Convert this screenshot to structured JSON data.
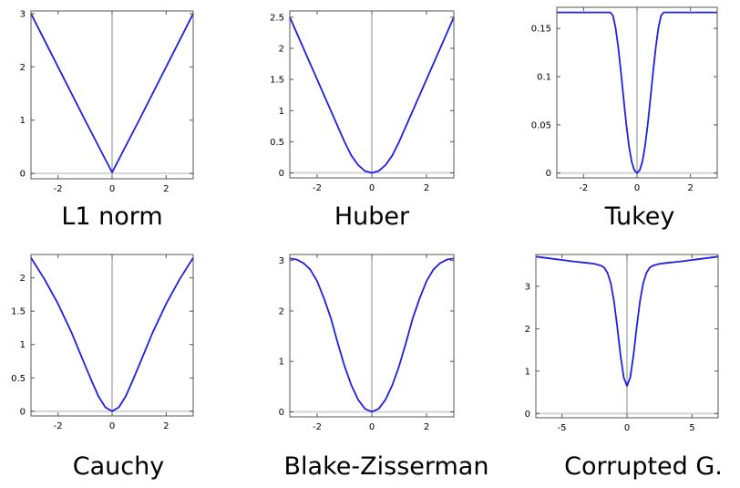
{
  "chart_data": [
    {
      "type": "line",
      "title": "L1 norm",
      "xlim": [
        -3,
        3
      ],
      "ylim": [
        -0.1,
        3.05
      ],
      "xticks": [
        -2,
        0,
        2
      ],
      "xtick_labels": [
        "-2",
        "0",
        "2"
      ],
      "yticks": [
        0,
        1,
        2,
        3
      ],
      "ytick_labels": [
        "0",
        "1",
        "2",
        "3"
      ],
      "baseline_y": 0.0,
      "grid": false,
      "series": [
        {
          "points": [
            [
              -3,
              3
            ],
            [
              -2,
              2
            ],
            [
              -1,
              1
            ],
            [
              0,
              0.02
            ],
            [
              1,
              1
            ],
            [
              2,
              2
            ],
            [
              3,
              3
            ]
          ]
        }
      ]
    },
    {
      "type": "line",
      "title": "Huber",
      "xlim": [
        -3,
        3
      ],
      "ylim": [
        -0.08,
        2.6
      ],
      "xticks": [
        -2,
        0,
        2
      ],
      "xtick_labels": [
        "-2",
        "0",
        "2"
      ],
      "yticks": [
        0,
        0.5,
        1,
        1.5,
        2,
        2.5
      ],
      "ytick_labels": [
        "0",
        "0.5",
        "1",
        "1.5",
        "2",
        "2.5"
      ],
      "baseline_y": 0.0,
      "grid": false,
      "series": [
        {
          "points": [
            [
              -3,
              2.5
            ],
            [
              -2.5,
              2.0
            ],
            [
              -2,
              1.5
            ],
            [
              -1.5,
              1.0
            ],
            [
              -1,
              0.5
            ],
            [
              -0.75,
              0.28
            ],
            [
              -0.5,
              0.125
            ],
            [
              -0.25,
              0.03
            ],
            [
              0,
              0.0
            ],
            [
              0.25,
              0.03
            ],
            [
              0.5,
              0.125
            ],
            [
              0.75,
              0.28
            ],
            [
              1,
              0.5
            ],
            [
              1.5,
              1.0
            ],
            [
              2,
              1.5
            ],
            [
              2.5,
              2.0
            ],
            [
              3,
              2.5
            ]
          ]
        }
      ]
    },
    {
      "type": "line",
      "title": "Tukey",
      "xlim": [
        -3,
        3
      ],
      "ylim": [
        -0.005,
        0.172
      ],
      "xticks": [
        -2,
        0,
        2
      ],
      "xtick_labels": [
        "-2",
        "0",
        "2"
      ],
      "yticks": [
        0,
        0.05,
        0.1,
        0.15
      ],
      "ytick_labels": [
        "0",
        "0.05",
        "0.1",
        "0.15"
      ],
      "baseline_y": 0.0,
      "grid": false,
      "series": [
        {
          "points": [
            [
              -3,
              0.1667
            ],
            [
              -1,
              0.1667
            ],
            [
              -0.9,
              0.1633
            ],
            [
              -0.8,
              0.1505
            ],
            [
              -0.7,
              0.13
            ],
            [
              -0.6,
              0.1045
            ],
            [
              -0.5,
              0.0768
            ],
            [
              -0.4,
              0.0502
            ],
            [
              -0.3,
              0.0277
            ],
            [
              -0.2,
              0.0118
            ],
            [
              -0.1,
              0.0029
            ],
            [
              0,
              0.0
            ],
            [
              0.1,
              0.0029
            ],
            [
              0.2,
              0.0118
            ],
            [
              0.3,
              0.0277
            ],
            [
              0.4,
              0.0502
            ],
            [
              0.5,
              0.0768
            ],
            [
              0.6,
              0.1045
            ],
            [
              0.7,
              0.13
            ],
            [
              0.8,
              0.1505
            ],
            [
              0.9,
              0.1633
            ],
            [
              1,
              0.1667
            ],
            [
              3,
              0.1667
            ]
          ]
        }
      ]
    },
    {
      "type": "line",
      "title": "Cauchy",
      "xlim": [
        -3,
        3
      ],
      "ylim": [
        -0.07,
        2.35
      ],
      "xticks": [
        -2,
        0,
        2
      ],
      "xtick_labels": [
        "-2",
        "0",
        "2"
      ],
      "yticks": [
        0,
        0.5,
        1,
        1.5,
        2
      ],
      "ytick_labels": [
        "0",
        "0.5",
        "1",
        "1.5",
        "2"
      ],
      "baseline_y": 0.0,
      "grid": false,
      "series": [
        {
          "points": [
            [
              -3,
              2.3
            ],
            [
              -2.5,
              1.98
            ],
            [
              -2,
              1.61
            ],
            [
              -1.5,
              1.18
            ],
            [
              -1,
              0.69
            ],
            [
              -0.75,
              0.45
            ],
            [
              -0.5,
              0.22
            ],
            [
              -0.25,
              0.06
            ],
            [
              0,
              0.0
            ],
            [
              0.25,
              0.06
            ],
            [
              0.5,
              0.22
            ],
            [
              0.75,
              0.45
            ],
            [
              1,
              0.69
            ],
            [
              1.5,
              1.18
            ],
            [
              2,
              1.61
            ],
            [
              2.5,
              1.98
            ],
            [
              3,
              2.3
            ]
          ]
        }
      ]
    },
    {
      "type": "line",
      "title": "Blake-Zisserman",
      "xlim": [
        -3,
        3
      ],
      "ylim": [
        -0.1,
        3.12
      ],
      "xticks": [
        -2,
        0,
        2
      ],
      "xtick_labels": [
        "-2",
        "0",
        "2"
      ],
      "yticks": [
        0,
        1,
        2,
        3
      ],
      "ytick_labels": [
        "0",
        "1",
        "2",
        "3"
      ],
      "baseline_y": 0.0,
      "grid": false,
      "series": [
        {
          "points": [
            [
              -3,
              3.04
            ],
            [
              -2.75,
              3.02
            ],
            [
              -2.5,
              2.95
            ],
            [
              -2.25,
              2.82
            ],
            [
              -2,
              2.59
            ],
            [
              -1.75,
              2.25
            ],
            [
              -1.5,
              1.86
            ],
            [
              -1.25,
              1.37
            ],
            [
              -1,
              0.91
            ],
            [
              -0.75,
              0.53
            ],
            [
              -0.5,
              0.24
            ],
            [
              -0.25,
              0.06
            ],
            [
              0,
              0.0
            ],
            [
              0.25,
              0.06
            ],
            [
              0.5,
              0.24
            ],
            [
              0.75,
              0.53
            ],
            [
              1,
              0.91
            ],
            [
              1.25,
              1.37
            ],
            [
              1.5,
              1.86
            ],
            [
              1.75,
              2.25
            ],
            [
              2,
              2.59
            ],
            [
              2.25,
              2.82
            ],
            [
              2.5,
              2.95
            ],
            [
              2.75,
              3.02
            ],
            [
              3,
              3.04
            ]
          ]
        }
      ]
    },
    {
      "type": "line",
      "title": "Corrupted G.",
      "xlim": [
        -7,
        7
      ],
      "ylim": [
        -0.1,
        3.75
      ],
      "xticks": [
        -5,
        0,
        5
      ],
      "xtick_labels": [
        "-5",
        "0",
        "5"
      ],
      "yticks": [
        0,
        1,
        2,
        3
      ],
      "ytick_labels": [
        "0",
        "1",
        "2",
        "3"
      ],
      "baseline_y": 0.0,
      "grid": false,
      "series": [
        {
          "points": [
            [
              -7,
              3.7
            ],
            [
              -6,
              3.66
            ],
            [
              -5,
              3.62
            ],
            [
              -4,
              3.58
            ],
            [
              -3,
              3.55
            ],
            [
              -2.5,
              3.53
            ],
            [
              -2,
              3.49
            ],
            [
              -1.75,
              3.44
            ],
            [
              -1.5,
              3.32
            ],
            [
              -1.25,
              3.08
            ],
            [
              -1,
              2.65
            ],
            [
              -0.75,
              2.05
            ],
            [
              -0.5,
              1.38
            ],
            [
              -0.25,
              0.85
            ],
            [
              0,
              0.65
            ],
            [
              0.25,
              0.85
            ],
            [
              0.5,
              1.38
            ],
            [
              0.75,
              2.05
            ],
            [
              1,
              2.65
            ],
            [
              1.25,
              3.08
            ],
            [
              1.5,
              3.32
            ],
            [
              1.75,
              3.44
            ],
            [
              2,
              3.49
            ],
            [
              2.5,
              3.53
            ],
            [
              3,
              3.55
            ],
            [
              4,
              3.58
            ],
            [
              5,
              3.62
            ],
            [
              6,
              3.66
            ],
            [
              7,
              3.7
            ]
          ]
        }
      ]
    }
  ],
  "style": {
    "curve_color": "#1f1fe6",
    "axis_color": "#555555",
    "center_line_color": "#8a8a8a",
    "baseline_color": "#d4d4d4"
  }
}
